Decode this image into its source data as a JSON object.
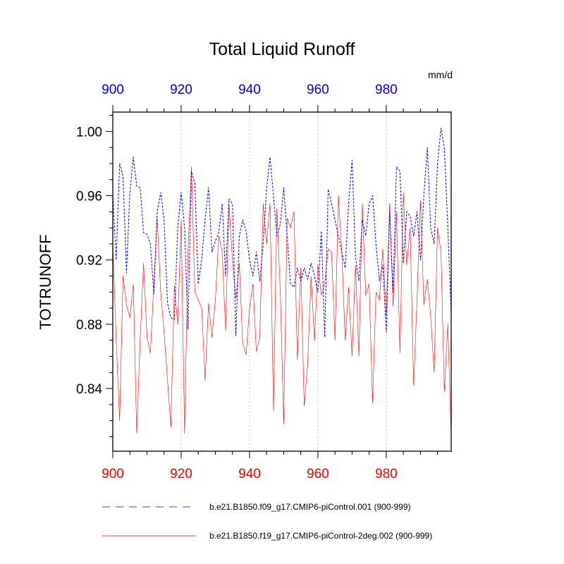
{
  "chart_data": {
    "type": "line",
    "title": "Total Liquid Runoff",
    "units": "mm/d",
    "ylabel": "TOTRUNOFF",
    "xlim": [
      900,
      999
    ],
    "ylim": [
      0.801,
      1.012
    ],
    "grid": "vertical-dotted",
    "legend_placement": "bottom",
    "x_ticks": [
      900,
      920,
      940,
      960,
      980
    ],
    "x_tick_labels": [
      "900",
      "920",
      "940",
      "960",
      "980"
    ],
    "y_ticks": [
      0.84,
      0.88,
      0.92,
      0.96,
      1.0
    ],
    "y_tick_labels": [
      "0.84",
      "0.88",
      "0.92",
      "0.96",
      "1.00"
    ],
    "colors": {
      "top_axis": "#0000ff",
      "bottom_axis": "#ff0000",
      "axis_text": "#000000",
      "grid": "#b4b4b4"
    },
    "series": [
      {
        "name": "b.e21.B1850.f09_g17.CMIP6-piControl.001 (900-999)",
        "color": "#0000ff",
        "dash": "dashed",
        "x_start": 900,
        "values": [
          0.961,
          0.92,
          0.98,
          0.972,
          0.912,
          0.962,
          0.984,
          0.966,
          0.965,
          0.937,
          0.936,
          0.93,
          0.899,
          0.95,
          0.962,
          0.945,
          0.893,
          0.884,
          0.883,
          0.94,
          0.962,
          0.94,
          0.877,
          0.975,
          0.968,
          0.905,
          0.92,
          0.945,
          0.965,
          0.925,
          0.932,
          0.937,
          0.955,
          0.91,
          0.958,
          0.955,
          0.873,
          0.935,
          0.945,
          0.938,
          0.92,
          0.91,
          0.925,
          0.907,
          0.93,
          0.965,
          0.984,
          0.96,
          0.935,
          0.942,
          0.965,
          0.935,
          0.905,
          0.903,
          0.915,
          0.907,
          0.915,
          0.908,
          0.918,
          0.91,
          0.9,
          0.938,
          0.872,
          0.964,
          0.955,
          0.945,
          0.935,
          0.925,
          0.915,
          0.955,
          0.982,
          0.922,
          0.907,
          0.945,
          0.935,
          0.955,
          0.96,
          0.93,
          0.907,
          0.917,
          0.875,
          0.95,
          0.9,
          0.978,
          0.975,
          0.918,
          0.95,
          0.947,
          0.935,
          0.95,
          0.92,
          0.96,
          0.99,
          0.94,
          0.93,
          0.98,
          1.002,
          0.99,
          0.94,
          0.887
        ]
      },
      {
        "name": "b.e21.B1850.f19_g17.CMIP6-piControl-2deg.002 (900-999)",
        "color": "#ff0000",
        "dash": "solid",
        "x_start": 900,
        "values": [
          0.93,
          0.87,
          0.82,
          0.91,
          0.892,
          0.884,
          0.905,
          0.812,
          0.87,
          0.918,
          0.872,
          0.862,
          0.905,
          0.946,
          0.9,
          0.875,
          0.845,
          0.816,
          0.904,
          0.88,
          0.945,
          0.812,
          0.925,
          0.978,
          0.9,
          0.895,
          0.89,
          0.845,
          0.893,
          0.872,
          0.895,
          0.935,
          0.925,
          0.876,
          0.955,
          0.92,
          0.896,
          0.918,
          0.868,
          0.861,
          0.89,
          0.905,
          0.863,
          0.872,
          0.955,
          0.93,
          0.955,
          0.826,
          0.952,
          0.9,
          0.818,
          0.946,
          0.94,
          0.95,
          0.858,
          0.915,
          0.829,
          0.855,
          0.91,
          0.87,
          0.917,
          0.898,
          0.905,
          0.927,
          0.925,
          0.87,
          0.96,
          0.925,
          0.87,
          0.903,
          0.86,
          0.917,
          0.86,
          0.955,
          0.898,
          0.905,
          0.831,
          0.9,
          0.895,
          0.927,
          0.885,
          0.955,
          0.891,
          0.95,
          0.862,
          0.962,
          0.917,
          0.94,
          0.842,
          0.895,
          0.957,
          0.892,
          0.908,
          0.885,
          0.85,
          0.94,
          0.925,
          0.838,
          0.88,
          0.81
        ]
      }
    ]
  }
}
